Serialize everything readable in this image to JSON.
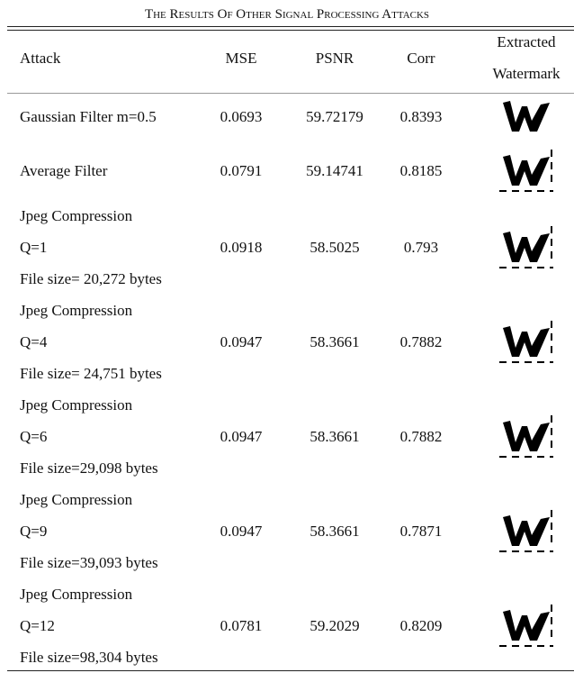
{
  "title": "The Results Of Other Signal Processing Attacks",
  "table": {
    "header": {
      "attack": "Attack",
      "mse": "MSE",
      "psnr": "PSNR",
      "corr": "Corr",
      "watermark": [
        "Extracted",
        "Watermark"
      ]
    },
    "rows": [
      {
        "attack": [
          "Gaussian Filter  m=0.5"
        ],
        "mse": "0.0693",
        "psnr": "59.72179",
        "corr": "0.8393"
      },
      {
        "attack": [
          "Average Filter"
        ],
        "mse": "0.0791",
        "psnr": "59.14741",
        "corr": "0.8185"
      },
      {
        "attack": [
          "Jpeg Compression",
          "Q=1",
          "File size= 20,272 bytes"
        ],
        "mse": "0.0918",
        "psnr": "58.5025",
        "corr": "0.793"
      },
      {
        "attack": [
          "Jpeg Compression",
          "Q=4",
          "File size= 24,751 bytes"
        ],
        "mse": "0.0947",
        "psnr": "58.3661",
        "corr": "0.7882"
      },
      {
        "attack": [
          "Jpeg Compression",
          "Q=6",
          "File size=29,098 bytes"
        ],
        "mse": "0.0947",
        "psnr": "58.3661",
        "corr": "0.7882"
      },
      {
        "attack": [
          "Jpeg Compression",
          "Q=9",
          "File size=39,093 bytes"
        ],
        "mse": "0.0947",
        "psnr": "58.3661",
        "corr": "0.7871"
      },
      {
        "attack": [
          "Jpeg Compression",
          "Q=12",
          "File size=98,304 bytes"
        ],
        "mse": "0.0781",
        "psnr": "59.2029",
        "corr": "0.8209"
      }
    ]
  }
}
